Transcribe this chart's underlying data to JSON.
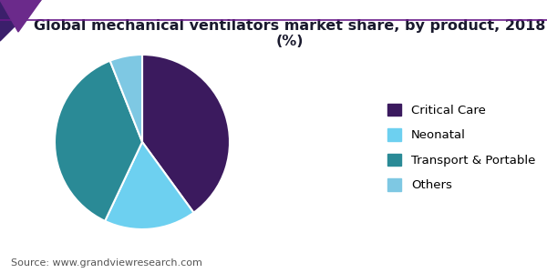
{
  "title": "Global mechanical ventilators market share, by product, 2018 (%)",
  "labels": [
    "Critical Care",
    "Neonatal",
    "Transport & Portable",
    "Others"
  ],
  "sizes": [
    40,
    17,
    37,
    6
  ],
  "colors": [
    "#3b1a5e",
    "#6dd0f0",
    "#2a8a96",
    "#7ec8e3"
  ],
  "legend_labels": [
    "Critical Care",
    "Neonatal",
    "Transport & Portable",
    "Others"
  ],
  "source_text": "Source: www.grandviewresearch.com",
  "background_color": "#ffffff",
  "title_fontsize": 11.5,
  "legend_fontsize": 9.5,
  "source_fontsize": 8,
  "startangle": 90,
  "wedge_edge_color": "#ffffff",
  "title_color": "#1a1a2e",
  "header_line_color": "#6a1a8a",
  "header_triangle_color1": "#3b1f6b",
  "header_triangle_color2": "#6b2a8b"
}
